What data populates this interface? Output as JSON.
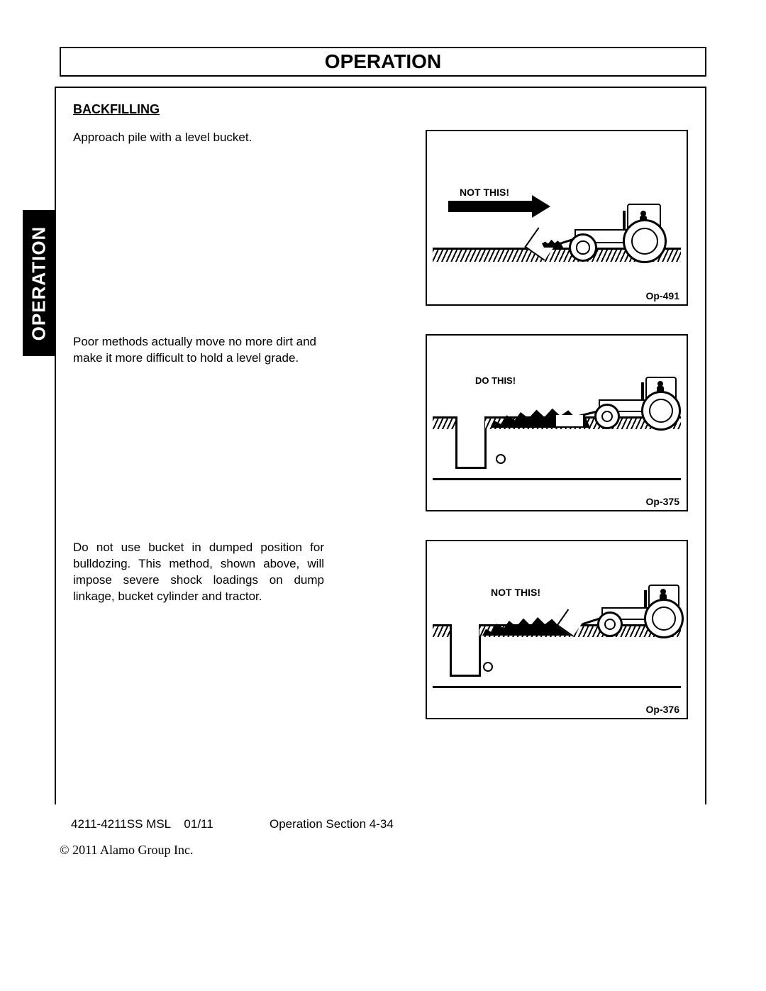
{
  "header": {
    "title": "OPERATION"
  },
  "sideTab": "OPERATION",
  "subheading": "BACKFILLING",
  "sections": [
    {
      "text": "Approach pile with a level bucket.",
      "figure": {
        "label": "NOT THIS!",
        "caption": "Op-491"
      }
    },
    {
      "text": "Poor methods actually move no more dirt and make it more difficult to hold a level grade.",
      "figure": {
        "label": "DO THIS!",
        "caption": "Op-375"
      }
    },
    {
      "text": "Do not use bucket in dumped position for bulldozing. This method, shown above, will impose severe shock loadings on dump linkage, bucket cylinder and tractor.",
      "figure": {
        "label": "NOT THIS!",
        "caption": "Op-376"
      }
    }
  ],
  "footer": {
    "docId": "4211-4211SS MSL",
    "date": "01/11",
    "sectionRef": "Operation Section 4-34",
    "copyright": "© 2011 Alamo Group Inc."
  },
  "colors": {
    "page_bg": "#ffffff",
    "ink": "#000000",
    "side_tab_bg": "#000000",
    "side_tab_fg": "#ffffff"
  },
  "typography": {
    "body_font": "Arial",
    "body_size_pt": 12,
    "header_size_pt": 20,
    "footer_serif": "Times New Roman"
  }
}
